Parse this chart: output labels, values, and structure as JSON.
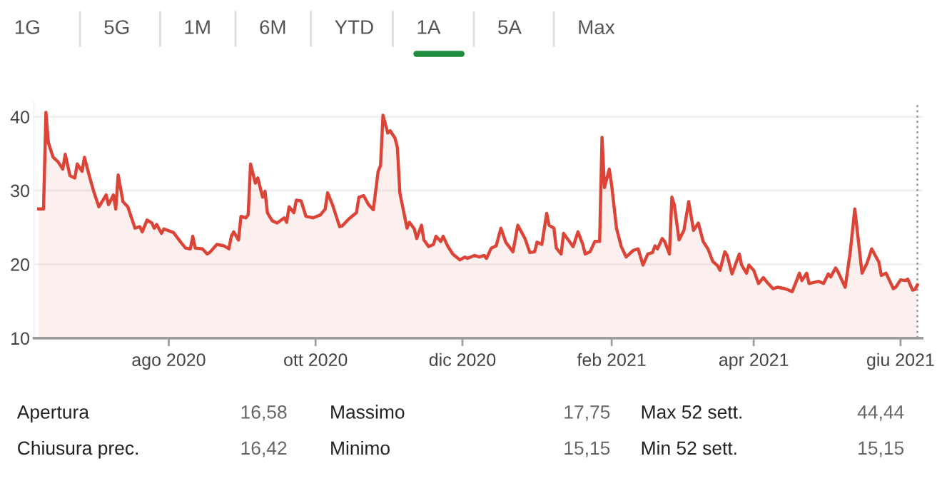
{
  "chart_data": {
    "type": "area",
    "x": [
      "2020-06-08",
      "2020-06-10",
      "2020-06-11",
      "2020-06-12",
      "2020-06-14",
      "2020-06-16",
      "2020-06-18",
      "2020-06-19",
      "2020-06-21",
      "2020-06-23",
      "2020-06-24",
      "2020-06-26",
      "2020-06-27",
      "2020-06-29",
      "2020-07-01",
      "2020-07-03",
      "2020-07-06",
      "2020-07-07",
      "2020-07-09",
      "2020-07-10",
      "2020-07-11",
      "2020-07-13",
      "2020-07-15",
      "2020-07-18",
      "2020-07-20",
      "2020-07-21",
      "2020-07-23",
      "2020-07-25",
      "2020-07-26",
      "2020-07-27",
      "2020-07-29",
      "2020-07-30",
      "2020-08-03",
      "2020-08-06",
      "2020-08-08",
      "2020-08-10",
      "2020-08-11",
      "2020-08-12",
      "2020-08-15",
      "2020-08-17",
      "2020-08-18",
      "2020-08-21",
      "2020-08-24",
      "2020-08-26",
      "2020-08-27",
      "2020-08-28",
      "2020-08-30",
      "2020-08-31",
      "2020-09-02",
      "2020-09-03",
      "2020-09-04",
      "2020-09-06",
      "2020-09-07",
      "2020-09-09",
      "2020-09-10",
      "2020-09-11",
      "2020-09-13",
      "2020-09-15",
      "2020-09-18",
      "2020-09-19",
      "2020-09-20",
      "2020-09-22",
      "2020-09-23",
      "2020-09-25",
      "2020-09-27",
      "2020-09-30",
      "2020-10-03",
      "2020-10-05",
      "2020-10-06",
      "2020-10-08",
      "2020-10-11",
      "2020-10-12",
      "2020-10-15",
      "2020-10-18",
      "2020-10-19",
      "2020-10-21",
      "2020-10-23",
      "2020-10-25",
      "2020-10-27",
      "2020-10-28",
      "2020-10-29",
      "2020-10-31",
      "2020-11-01",
      "2020-11-03",
      "2020-11-04",
      "2020-11-05",
      "2020-11-08",
      "2020-11-09",
      "2020-11-11",
      "2020-11-12",
      "2020-11-14",
      "2020-11-15",
      "2020-11-17",
      "2020-11-19",
      "2020-11-20",
      "2020-11-22",
      "2020-11-23",
      "2020-11-25",
      "2020-11-27",
      "2020-11-30",
      "2020-12-02",
      "2020-12-03",
      "2020-12-06",
      "2020-12-08",
      "2020-12-10",
      "2020-12-11",
      "2020-12-13",
      "2020-12-15",
      "2020-12-17",
      "2020-12-19",
      "2020-12-22",
      "2020-12-24",
      "2020-12-27",
      "2020-12-29",
      "2020-12-31",
      "2021-01-01",
      "2021-01-03",
      "2021-01-05",
      "2021-01-06",
      "2021-01-08",
      "2021-01-09",
      "2021-01-11",
      "2021-01-12",
      "2021-01-14",
      "2021-01-16",
      "2021-01-18",
      "2021-01-20",
      "2021-01-21",
      "2021-01-23",
      "2021-01-25",
      "2021-01-27",
      "2021-01-28",
      "2021-01-29",
      "2021-01-31",
      "2021-02-01",
      "2021-02-03",
      "2021-02-05",
      "2021-02-07",
      "2021-02-10",
      "2021-02-12",
      "2021-02-14",
      "2021-02-16",
      "2021-02-18",
      "2021-02-19",
      "2021-02-20",
      "2021-02-22",
      "2021-02-23",
      "2021-02-25",
      "2021-02-26",
      "2021-02-27",
      "2021-03-01",
      "2021-03-03",
      "2021-03-05",
      "2021-03-07",
      "2021-03-09",
      "2021-03-11",
      "2021-03-13",
      "2021-03-15",
      "2021-03-17",
      "2021-03-18",
      "2021-03-20",
      "2021-03-21",
      "2021-03-23",
      "2021-03-26",
      "2021-03-27",
      "2021-03-29",
      "2021-03-30",
      "2021-04-01",
      "2021-04-03",
      "2021-04-05",
      "2021-04-07",
      "2021-04-09",
      "2021-04-11",
      "2021-04-14",
      "2021-04-17",
      "2021-04-20",
      "2021-04-21",
      "2021-04-23",
      "2021-04-24",
      "2021-04-28",
      "2021-04-30",
      "2021-05-02",
      "2021-05-03",
      "2021-05-05",
      "2021-05-06",
      "2021-05-09",
      "2021-05-11",
      "2021-05-13",
      "2021-05-16",
      "2021-05-18",
      "2021-05-20",
      "2021-05-23",
      "2021-05-24",
      "2021-05-26",
      "2021-05-29",
      "2021-05-30",
      "2021-06-01",
      "2021-06-03",
      "2021-06-04",
      "2021-06-06",
      "2021-06-07",
      "2021-06-08"
    ],
    "series": [
      {
        "color": "#db4437",
        "values": [
          27.5,
          27.5,
          40.6,
          36.5,
          34.5,
          33.9,
          32.9,
          34.9,
          32.0,
          31.7,
          33.6,
          32.6,
          34.5,
          32.0,
          29.7,
          27.8,
          29.4,
          28.1,
          29.4,
          27.5,
          32.1,
          28.5,
          27.8,
          24.9,
          25.1,
          24.4,
          26.0,
          25.6,
          24.9,
          25.4,
          24.2,
          24.8,
          24.3,
          23.0,
          22.2,
          22.1,
          23.8,
          22.2,
          22.1,
          21.4,
          21.6,
          22.7,
          22.5,
          22.1,
          23.8,
          24.4,
          23.3,
          26.5,
          26.3,
          26.7,
          33.6,
          31.0,
          31.7,
          29.1,
          29.9,
          27.0,
          25.9,
          25.6,
          26.3,
          25.7,
          27.8,
          27.0,
          28.7,
          28.6,
          26.5,
          26.3,
          26.7,
          27.5,
          29.7,
          28.1,
          25.1,
          25.2,
          26.2,
          27.0,
          29.1,
          29.3,
          28.1,
          27.4,
          32.6,
          33.4,
          40.2,
          37.8,
          38.1,
          37.1,
          35.8,
          29.7,
          24.9,
          25.7,
          24.8,
          23.5,
          25.3,
          23.3,
          22.4,
          22.7,
          23.8,
          23.1,
          23.8,
          22.4,
          21.4,
          20.6,
          21.0,
          20.8,
          21.2,
          21.0,
          21.2,
          20.8,
          22.2,
          22.5,
          24.9,
          23.0,
          21.7,
          25.3,
          23.5,
          21.6,
          21.7,
          23.0,
          22.7,
          26.9,
          25.3,
          24.9,
          22.2,
          21.4,
          24.2,
          23.3,
          22.4,
          24.4,
          22.7,
          21.4,
          21.7,
          23.1,
          23.1,
          37.2,
          30.4,
          32.9,
          30.7,
          24.9,
          22.4,
          21.0,
          21.9,
          22.1,
          19.9,
          21.4,
          21.6,
          22.5,
          22.1,
          23.5,
          23.1,
          21.4,
          29.1,
          28.1,
          23.3,
          24.6,
          28.5,
          24.6,
          25.6,
          23.1,
          22.1,
          20.4,
          19.8,
          19.2,
          21.7,
          21.2,
          18.7,
          21.4,
          19.9,
          18.8,
          19.9,
          19.2,
          17.4,
          18.2,
          17.4,
          16.7,
          16.9,
          16.7,
          16.3,
          18.8,
          17.8,
          18.8,
          17.4,
          17.7,
          17.4,
          18.7,
          18.3,
          19.5,
          19.0,
          16.9,
          21.4,
          27.5,
          18.8,
          20.1,
          22.1,
          20.3,
          18.5,
          18.8,
          16.7,
          16.9,
          17.9,
          17.8,
          18.0,
          16.5,
          16.6,
          17.2
        ]
      }
    ],
    "xlim": [
      "2020-06-06",
      "2021-06-10"
    ],
    "xticks": [
      {
        "value": "2020-08-01",
        "label": "ago 2020"
      },
      {
        "value": "2020-10-01",
        "label": "ott 2020"
      },
      {
        "value": "2020-12-01",
        "label": "dic 2020"
      },
      {
        "value": "2021-02-01",
        "label": "feb 2021"
      },
      {
        "value": "2021-04-01",
        "label": "apr 2021"
      },
      {
        "value": "2021-06-01",
        "label": "giu 2021"
      }
    ],
    "ylim": [
      10,
      42
    ],
    "yticks": [
      10,
      20,
      30,
      40
    ],
    "grid": "y",
    "ref_lines": [
      {
        "axis": "x",
        "value": "2021-06-08",
        "label": null,
        "color": "#9e9e9e",
        "line_style": "dotted"
      }
    ],
    "annotations": [
      "1G",
      "5G",
      "1M",
      "6M",
      "YTD",
      "1A",
      "5A",
      "Max",
      "Apertura",
      "16,58",
      "Massimo",
      "17,75",
      "Max 52 sett.",
      "44,44",
      "Chiusura prec.",
      "16,42",
      "Minimo",
      "15,15",
      "Min 52 sett.",
      "15,15"
    ]
  }
}
